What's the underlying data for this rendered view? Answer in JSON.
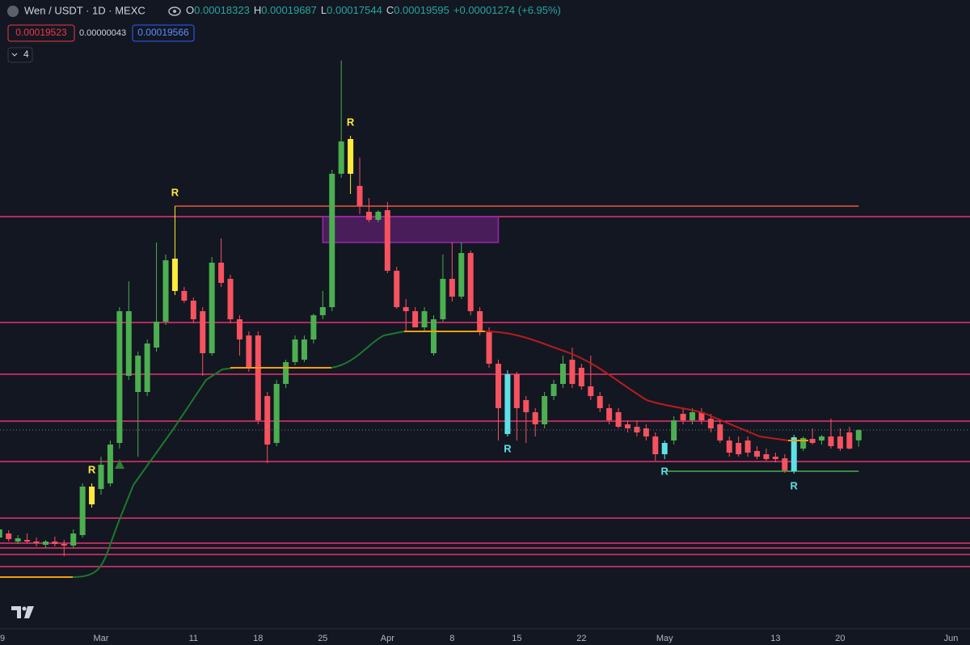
{
  "header": {
    "symbol": "Wen / USDT · 1D · MEXC",
    "ohlc": [
      {
        "label": "O",
        "value": "0.00018323"
      },
      {
        "label": "H",
        "value": "0.00019687"
      },
      {
        "label": "L",
        "value": "0.00017544"
      },
      {
        "label": "C",
        "value": "0.00019595"
      }
    ],
    "change": "+0.00001274 (+6.95%)",
    "sell": "0.00019523",
    "spread": "0.00000043",
    "buy": "0.00019566",
    "indicators": "4"
  },
  "chart_data": {
    "type": "candlestick",
    "categories": [
      "9",
      null,
      null,
      null,
      null,
      null,
      null,
      null,
      null,
      null,
      null,
      "Mar",
      null,
      null,
      null,
      null,
      null,
      null,
      null,
      null,
      null,
      "11",
      null,
      null,
      null,
      null,
      null,
      null,
      "18",
      null,
      null,
      null,
      null,
      null,
      null,
      "25",
      null,
      null,
      null,
      null,
      null,
      null,
      "Apr",
      null,
      null,
      null,
      null,
      null,
      null,
      "8",
      null,
      null,
      null,
      null,
      null,
      null,
      "15",
      null,
      null,
      null,
      null,
      null,
      null,
      "22",
      null,
      null,
      null,
      null,
      null,
      null,
      null,
      null,
      "May",
      null,
      null,
      null,
      null,
      null,
      null,
      null,
      null,
      null,
      null,
      null,
      "13",
      null,
      null,
      null,
      null,
      null,
      null,
      "20",
      null,
      null,
      null,
      null,
      null,
      null,
      null,
      null,
      null,
      null,
      null,
      "Jun"
    ],
    "open": [
      6.3e-05,
      6.8e-05,
      5.8e-05,
      6e-05,
      5.8e-05,
      5.4e-05,
      5.8e-05,
      5.5e-05,
      5.3e-05,
      6.6e-05,
      0.000104,
      0.000123,
      0.00013,
      0.00018,
      0.000263,
      0.000243,
      0.000243,
      0.000298,
      0.00033,
      0.000368,
      0.000368,
      0.000356,
      0.000343,
      0.000291,
      0.000403,
      0.000383,
      0.000333,
      0.000313,
      0.000313,
      0.000238,
      0.00018,
      0.000253,
      0.00028,
      0.000283,
      0.000308,
      0.000338,
      0.000348,
      0.000513,
      0.000556,
      0.000498,
      0.000466,
      0.000456,
      0.000468,
      0.000393,
      0.000348,
      0.000343,
      0.000323,
      0.000291,
      0.000333,
      0.000383,
      0.000361,
      0.000415,
      0.000343,
      0.000318,
      0.000278,
      0.000191,
      0.000265,
      0.000233,
      0.000218,
      0.000203,
      0.000238,
      0.000253,
      0.000283,
      0.000273,
      0.00025,
      0.000238,
      0.000223,
      0.000218,
      0.000203,
      0.0002,
      0.000198,
      0.000188,
      0.000166,
      0.000183,
      0.000216,
      0.000208,
      0.000218,
      0.00021,
      0.000203,
      0.000183,
      0.00018,
      0.000183,
      0.00017,
      0.000166,
      0.000163,
      0.000161,
      0.000145,
      0.000173,
      0.000185,
      0.000183,
      0.000188,
      0.000188,
      0.000193,
      0.00018323,
      null,
      null,
      null,
      null,
      null,
      null,
      null,
      null,
      null,
      null
    ],
    "high": [
      8.3e-05,
      7.2e-05,
      6.6e-05,
      6.8e-05,
      6.3e-05,
      6e-05,
      6.4e-05,
      6e-05,
      7.3e-05,
      0.00013,
      0.00013,
      0.000163,
      0.000183,
      0.000348,
      0.00038,
      0.000293,
      0.000308,
      0.000428,
      0.000413,
      0.000473,
      0.000373,
      0.00036,
      0.000348,
      0.00041,
      0.000433,
      0.000388,
      0.000338,
      0.000318,
      0.000318,
      0.000243,
      0.000258,
      0.000283,
      0.000313,
      0.000313,
      0.00034,
      0.000368,
      0.000518,
      0.000653,
      0.00056,
      0.000533,
      0.000483,
      0.000468,
      0.000478,
      0.000398,
      0.000358,
      0.000348,
      0.000348,
      0.000338,
      0.000413,
      0.000428,
      0.000428,
      0.000418,
      0.000348,
      0.000323,
      0.000283,
      0.00027,
      0.000268,
      0.000238,
      0.000223,
      0.000243,
      0.000258,
      0.000288,
      0.000298,
      0.000278,
      0.000288,
      0.000243,
      0.000228,
      0.000223,
      0.000208,
      0.000208,
      0.000203,
      0.000193,
      0.000183,
      0.000213,
      0.000223,
      0.000223,
      0.000223,
      0.000216,
      0.000208,
      0.000188,
      0.000188,
      0.000188,
      0.000176,
      0.000173,
      0.000168,
      0.000166,
      0.00019,
      0.000188,
      0.000198,
      0.00019,
      0.00021,
      0.000198,
      0.0002,
      0.00019687,
      null,
      null,
      null,
      null,
      null,
      null,
      null,
      null,
      null,
      null
    ],
    "low": [
      6e-05,
      5.8e-05,
      5.5e-05,
      5.6e-05,
      5.2e-05,
      5e-05,
      5.2e-05,
      4e-05,
      5e-05,
      6.3e-05,
      0.0001,
      0.000116,
      0.000126,
      0.000173,
      0.000258,
      0.000163,
      0.000238,
      0.000293,
      0.000326,
      0.000363,
      0.000353,
      0.000328,
      0.000263,
      0.000288,
      0.000373,
      0.000328,
      0.000288,
      0.000268,
      0.000203,
      0.000155,
      0.000176,
      0.000248,
      0.000276,
      0.00028,
      0.000303,
      0.000333,
      0.000343,
      0.000508,
      0.000488,
      0.000463,
      0.000453,
      0.000453,
      0.00039,
      0.000346,
      0.000318,
      0.000323,
      0.000318,
      0.000288,
      0.00033,
      0.000355,
      0.000358,
      0.000338,
      0.000313,
      0.000273,
      0.000183,
      0.000188,
      0.000183,
      0.00018,
      0.000188,
      0.000198,
      0.000233,
      0.000248,
      0.000248,
      0.000246,
      0.000233,
      0.000218,
      0.000203,
      0.000198,
      0.000193,
      0.000188,
      0.000183,
      0.000158,
      0.00016,
      0.000178,
      0.000203,
      0.000203,
      0.000203,
      0.000193,
      0.00018,
      0.000163,
      0.000163,
      0.000163,
      0.00016,
      0.000158,
      0.000156,
      0.000143,
      0.000142,
      0.00017,
      0.000178,
      0.000178,
      0.000173,
      0.00017,
      0.000172,
      0.00017544,
      null,
      null,
      null,
      null,
      null,
      null,
      null,
      null,
      null,
      null
    ],
    "close": [
      7.3e-05,
      6.1e-05,
      6.2e-05,
      5.8e-05,
      5.6e-05,
      5.8e-05,
      5.5e-05,
      5.3e-05,
      6.8e-05,
      0.000126,
      0.000126,
      0.000153,
      0.000178,
      0.000343,
      0.000343,
      0.000288,
      0.000303,
      0.00033,
      0.000406,
      0.000408,
      0.000356,
      0.000333,
      0.000291,
      0.000403,
      0.000378,
      0.000333,
      0.000308,
      0.000273,
      0.000208,
      0.000178,
      0.000253,
      0.00028,
      0.000308,
      0.000308,
      0.000338,
      0.000348,
      0.000513,
      0.000553,
      0.000513,
      0.000473,
      0.000456,
      0.000466,
      0.000393,
      0.000348,
      0.000343,
      0.000323,
      0.000343,
      0.000333,
      0.000383,
      0.000361,
      0.000415,
      0.000343,
      0.000318,
      0.000278,
      0.000223,
      0.000265,
      0.000223,
      0.000218,
      0.000203,
      0.000238,
      0.000253,
      0.000278,
      0.000253,
      0.00025,
      0.000238,
      0.000223,
      0.000208,
      0.0002,
      0.000198,
      0.000193,
      0.000188,
      0.000166,
      0.00018,
      0.000208,
      0.000208,
      0.000218,
      0.000208,
      0.000198,
      0.000183,
      0.000168,
      0.000166,
      0.000168,
      0.000163,
      0.00016,
      0.00016,
      0.000146,
      0.000187,
      0.000186,
      0.00018,
      0.000188,
      0.000176,
      0.000173,
      0.000173,
      0.00019595,
      null,
      null,
      null,
      null,
      null,
      null,
      null,
      null,
      null,
      null
    ],
    "up_color": "#4caf50",
    "down_color": "#f7525f",
    "highlights": [
      {
        "color": "#ffeb3b",
        "indices": [
          10,
          19,
          38
        ]
      },
      {
        "color": "#5ce1e6",
        "indices": [
          55,
          72,
          86
        ]
      }
    ],
    "annotations": [
      {
        "text": "R",
        "index": 10,
        "position": "above",
        "color": "#ffeb3b"
      },
      {
        "text": "R",
        "index": 19,
        "position": "above",
        "color": "#ffeb3b"
      },
      {
        "text": "R",
        "index": 38,
        "position": "above",
        "color": "#ffeb3b"
      },
      {
        "text": "R",
        "index": 55,
        "position": "below",
        "color": "#5ce1e6"
      },
      {
        "text": "R",
        "index": 72,
        "position": "below",
        "color": "#5ce1e6"
      },
      {
        "text": "R",
        "index": 86,
        "position": "below",
        "color": "#5ce1e6"
      }
    ],
    "levels": [
      0.00046,
      0.000329,
      0.000265,
      0.000207,
      0.000157,
      8.7e-05,
      5.6e-05,
      5e-05,
      4.2e-05,
      2.7e-05
    ],
    "level_color": "#e8336f",
    "segments": [
      {
        "value": 0.000473,
        "from": 19,
        "to": 93,
        "color": "#f0573a"
      },
      {
        "value": 0.000145,
        "from": 72,
        "to": 93,
        "color": "#4caf50"
      }
    ],
    "box": {
      "from": 35,
      "to": 54,
      "top": 0.00046,
      "bottom": 0.000428,
      "color": "#9c27b0"
    },
    "ylim": [
      0,
      0.0007
    ]
  }
}
